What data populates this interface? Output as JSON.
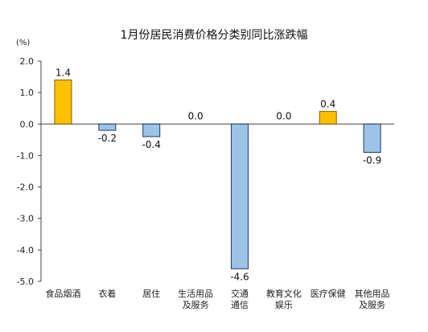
{
  "chart_data": {
    "type": "bar",
    "title": "1月份居民消费价格分类别同比涨跌幅",
    "unit": "(%)",
    "ylim": [
      -5.0,
      2.0
    ],
    "yticks": [
      "2.0",
      "1.0",
      "0.0",
      "-1.0",
      "-2.0",
      "-3.0",
      "-4.0",
      "-5.0"
    ],
    "ytick_values": [
      2.0,
      1.0,
      0.0,
      -1.0,
      -2.0,
      -3.0,
      -4.0,
      -5.0
    ],
    "categories": [
      [
        "食品烟酒"
      ],
      [
        "衣着"
      ],
      [
        "居住"
      ],
      [
        "生活用品",
        "及服务"
      ],
      [
        "交通",
        "通信"
      ],
      [
        "教育文化",
        "娱乐"
      ],
      [
        "医疗保健"
      ],
      [
        "其他用品",
        "及服务"
      ]
    ],
    "values": [
      1.4,
      -0.2,
      -0.4,
      0.0,
      -4.6,
      0.0,
      0.4,
      -0.9
    ],
    "value_labels": [
      "1.4",
      "-0.2",
      "-0.4",
      "0.0",
      "-4.6",
      "0.0",
      "0.4",
      "-0.9"
    ],
    "grid": false,
    "legend": "none",
    "colors": {
      "positive_fill": "#FFC000",
      "positive_stroke": "#7F6000",
      "negative_fill": "#9DC3E6",
      "negative_stroke": "#1F3864",
      "axis": "#444444"
    }
  }
}
